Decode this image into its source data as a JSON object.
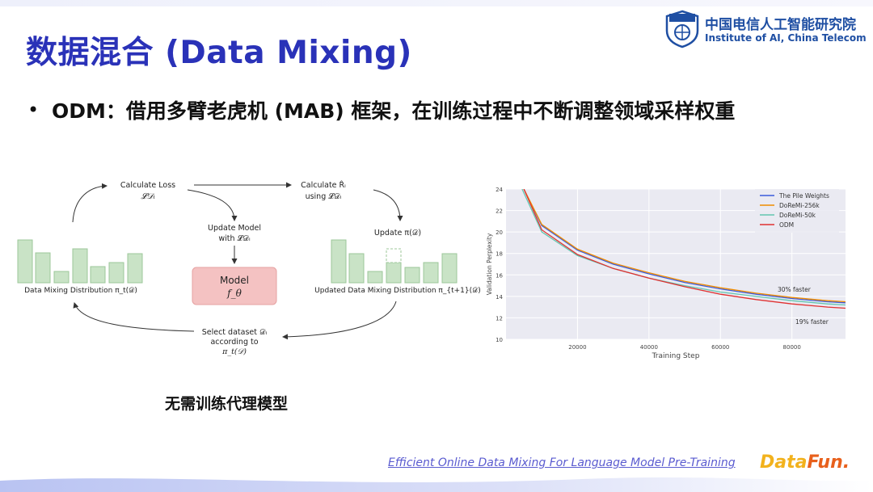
{
  "title": "数据混合 (Data Mixing)",
  "logo": {
    "cn": "中国电信人工智能研究院",
    "en": "Institute of AI, China Telecom",
    "badge": "TeleAI"
  },
  "bullet": {
    "text": "ODM：借用多臂老虎机 (MAB) 框架，在训练过程中不断调整领域采样权重"
  },
  "diagram": {
    "calc_loss": "Calculate Loss",
    "calc_loss_math": "𝓛𝒟ᵢ",
    "calc_r": "Calculate R̂ᵢ",
    "calc_r_using": "using 𝓛𝒟ᵢ",
    "update_model": "Update Model",
    "update_model_with": "with 𝓛𝒟ᵢ",
    "update_pi": "Update π(𝒟)",
    "model_label": "Model",
    "model_sym": "f_θ",
    "left_dist": "Data Mixing Distribution π_t(𝒟)",
    "right_dist": "Updated Data Mixing Distribution π_{t+1}(𝒟)",
    "select_1": "Select dataset 𝒟ᵢ",
    "select_2": "according to",
    "select_3": "π_t(𝒟)"
  },
  "caption": "无需训练代理模型",
  "chart_data": {
    "type": "line",
    "xlabel": "Training Step",
    "ylabel": "Validation Perplexity",
    "xlim": [
      0,
      95000
    ],
    "ylim": [
      10,
      24
    ],
    "xticks": [
      "20000",
      "40000",
      "60000",
      "80000"
    ],
    "yticks": [
      "10",
      "12",
      "14",
      "16",
      "18",
      "20",
      "22",
      "24"
    ],
    "legend_position": "top-right",
    "grid": true,
    "series": [
      {
        "name": "The Pile Weights",
        "color": "#3b5bdb",
        "x": [
          5000,
          10000,
          20000,
          30000,
          40000,
          50000,
          60000,
          70000,
          80000,
          90000,
          95000
        ],
        "y": [
          24,
          20.6,
          18.3,
          17.0,
          16.1,
          15.3,
          14.7,
          14.2,
          13.8,
          13.5,
          13.4
        ]
      },
      {
        "name": "DoReMi-256k",
        "color": "#f08c00",
        "x": [
          5000,
          10000,
          20000,
          30000,
          40000,
          50000,
          60000,
          70000,
          80000,
          90000,
          95000
        ],
        "y": [
          24,
          20.7,
          18.4,
          17.1,
          16.2,
          15.4,
          14.8,
          14.3,
          13.9,
          13.6,
          13.5
        ]
      },
      {
        "name": "DoReMi-50k",
        "color": "#63c6b0",
        "x": [
          4500,
          10000,
          20000,
          30000,
          40000,
          50000,
          60000,
          70000,
          80000,
          90000,
          95000
        ],
        "y": [
          24,
          20.0,
          17.8,
          16.6,
          15.7,
          15.0,
          14.4,
          14.0,
          13.6,
          13.3,
          13.2
        ]
      },
      {
        "name": "ODM",
        "color": "#e03131",
        "x": [
          5000,
          10000,
          20000,
          30000,
          40000,
          50000,
          60000,
          70000,
          80000,
          90000,
          95000
        ],
        "y": [
          24,
          20.2,
          17.9,
          16.6,
          15.7,
          14.9,
          14.2,
          13.7,
          13.3,
          13.0,
          12.9
        ]
      }
    ],
    "annotations": [
      "30% faster",
      "19% faster"
    ]
  },
  "footer": {
    "link": "Efficient Online Data Mixing For Language Model Pre-Training",
    "brand_a": "Data",
    "brand_b": "Fun."
  },
  "colors": {
    "title": "#2a32b8",
    "bar": "#c9e3c6",
    "model_box": "#f4c2c2"
  }
}
